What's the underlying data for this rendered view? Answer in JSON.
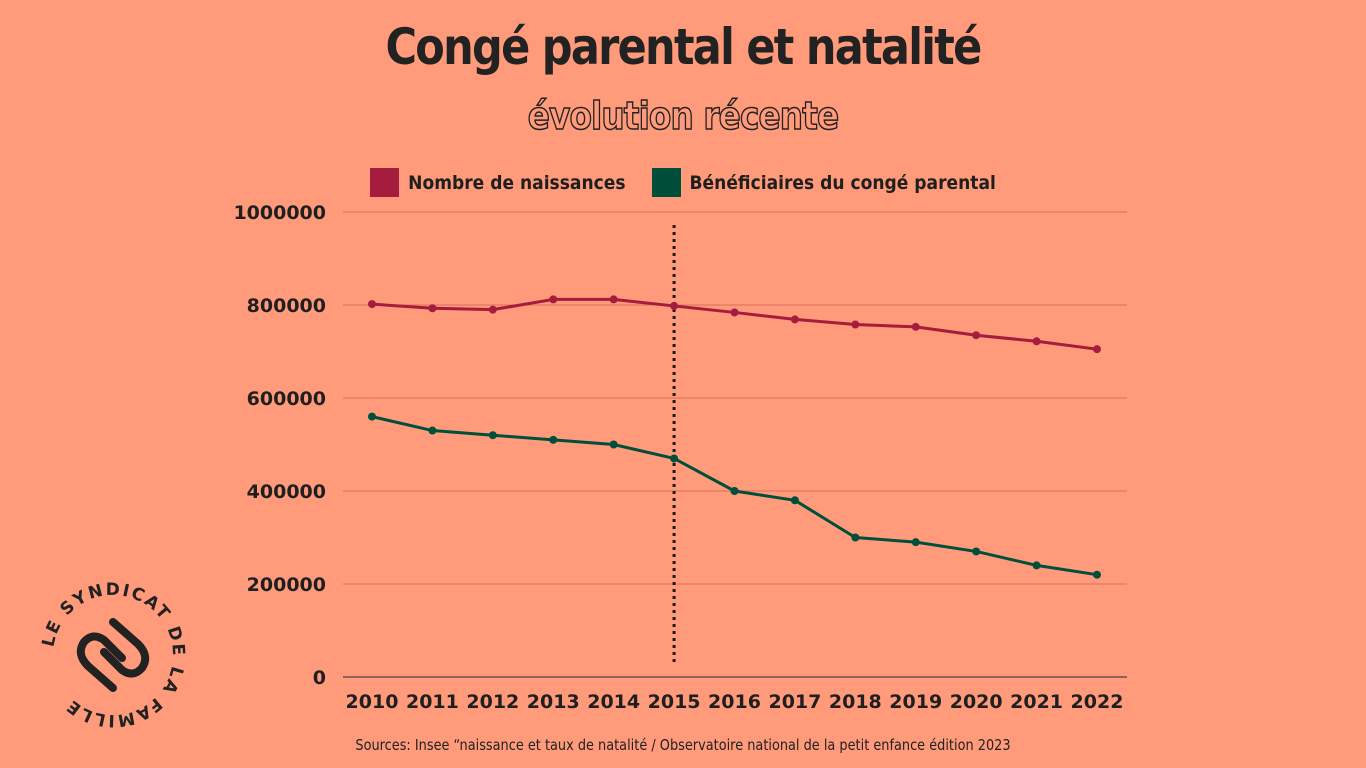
{
  "title": "Congé parental et natalité",
  "subtitle": "évolution récente",
  "source": "Sources: Insee “naissance et taux de natalité / Observatoire national de la petit enfance édition 2023",
  "logo": {
    "text": "LE SYNDICAT DE LA FAMILLE",
    "icon": "intertwined-hearts-icon"
  },
  "colors": {
    "background": "#FF9A7A",
    "births": "#A51C3E",
    "beneficiaries": "#004F3B",
    "grid": "#D9725A",
    "text": "#222222"
  },
  "chart_data": {
    "type": "line",
    "x": [
      "2010",
      "2011",
      "2012",
      "2013",
      "2014",
      "2015",
      "2016",
      "2017",
      "2018",
      "2019",
      "2020",
      "2021",
      "2022"
    ],
    "series": [
      {
        "name": "Nombre de naissances",
        "color": "#A51C3E",
        "values": [
          802000,
          793000,
          790000,
          812000,
          812000,
          798000,
          784000,
          769000,
          758000,
          753000,
          735000,
          722000,
          705000
        ]
      },
      {
        "name": "Bénéficiaires du congé parental",
        "color": "#004F3B",
        "values": [
          560000,
          530000,
          520000,
          510000,
          500000,
          470000,
          400000,
          380000,
          300000,
          290000,
          270000,
          240000,
          220000
        ]
      }
    ],
    "y_ticks": [
      "1000000",
      "800000",
      "600000",
      "400000",
      "200000",
      "0"
    ],
    "ylim": [
      0,
      1000000
    ],
    "grid": true,
    "legend_position": "top-center",
    "vertical_marker_x": "2015",
    "vertical_marker_style": "dotted"
  }
}
